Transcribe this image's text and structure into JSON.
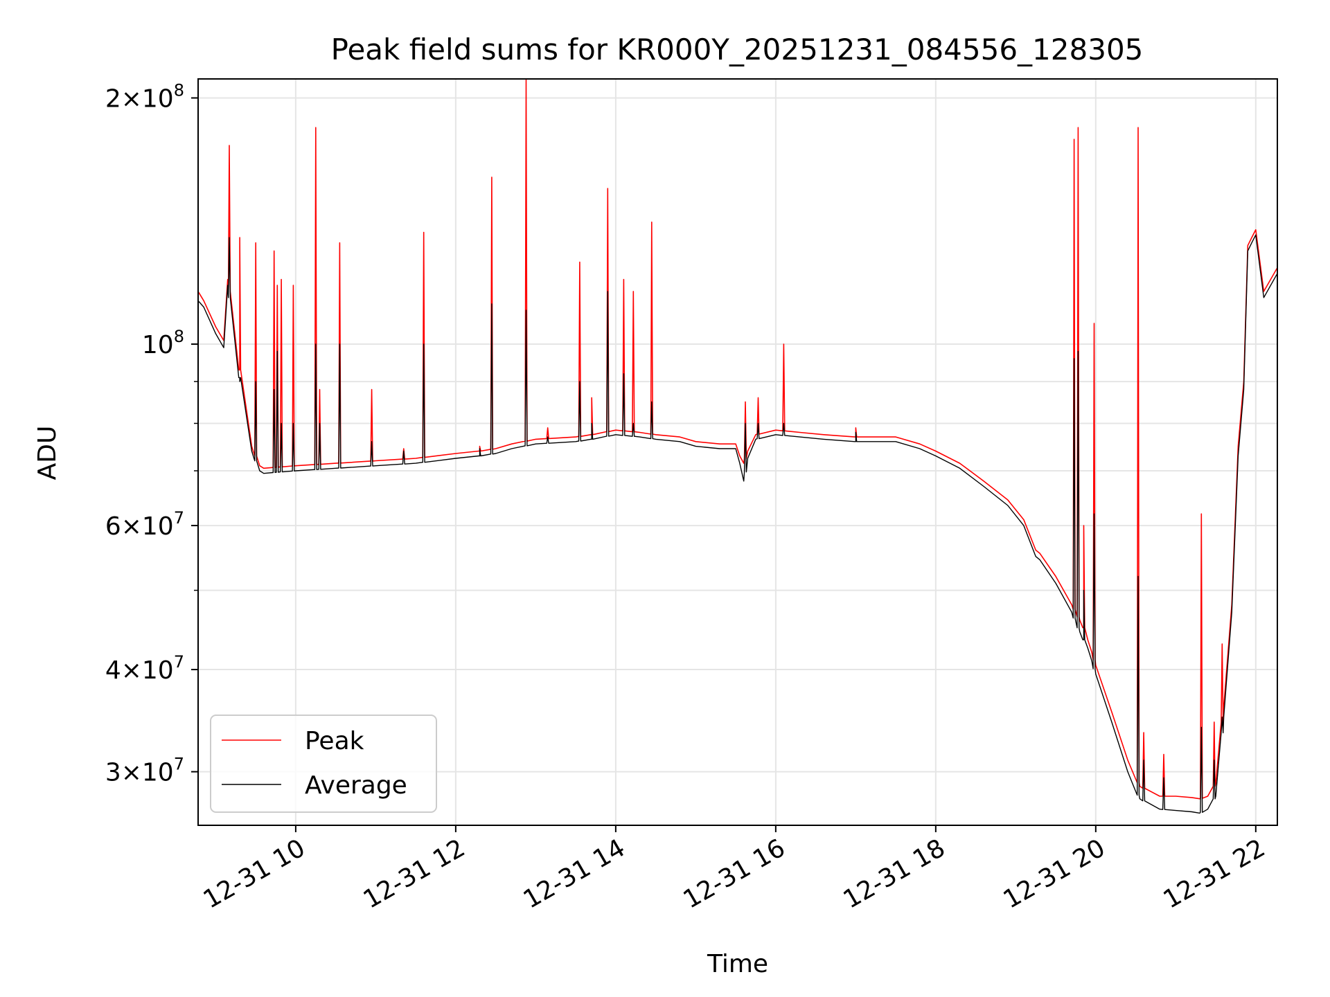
{
  "chart_data": {
    "type": "line",
    "title": "Peak field sums for KR000Y_20251231_084556_128305",
    "xlabel": "Time",
    "ylabel": "ADU",
    "yscale": "log",
    "grid": true,
    "xlim_hours": [
      8.78,
      22.27
    ],
    "ylim": [
      25800000,
      211000000
    ],
    "x_ticks": [
      {
        "hour": 10,
        "label": "12-31 10"
      },
      {
        "hour": 12,
        "label": "12-31 12"
      },
      {
        "hour": 14,
        "label": "12-31 14"
      },
      {
        "hour": 16,
        "label": "12-31 16"
      },
      {
        "hour": 18,
        "label": "12-31 18"
      },
      {
        "hour": 20,
        "label": "12-31 20"
      },
      {
        "hour": 22,
        "label": "12-31 22"
      }
    ],
    "y_major_ticks": [
      {
        "value": 30000000,
        "mantissa": "3",
        "exp": "7"
      },
      {
        "value": 40000000,
        "mantissa": "4",
        "exp": "7"
      },
      {
        "value": 60000000,
        "mantissa": "6",
        "exp": "7"
      },
      {
        "value": 100000000,
        "mantissa": "",
        "exp": "8"
      },
      {
        "value": 200000000,
        "mantissa": "2",
        "exp": "8"
      }
    ],
    "y_minor_ticks": [
      50000000,
      70000000,
      80000000,
      90000000
    ],
    "legend": {
      "position": "lower-left",
      "entries": [
        {
          "label": "Peak",
          "color": "#ff0000"
        },
        {
          "label": "Average",
          "color": "#000000"
        }
      ]
    },
    "baseline": {
      "hours": [
        8.78,
        8.85,
        9.0,
        9.1,
        9.15,
        9.3,
        9.45,
        9.55,
        9.6,
        10.0,
        10.5,
        11.0,
        11.5,
        12.0,
        12.3,
        12.5,
        12.7,
        13.0,
        13.5,
        13.7,
        14.0,
        14.3,
        14.5,
        14.8,
        15.0,
        15.3,
        15.5,
        15.55,
        15.6,
        15.65,
        15.75,
        16.0,
        16.3,
        16.6,
        17.0,
        17.5,
        17.8,
        18.0,
        18.3,
        18.6,
        18.9,
        19.1,
        19.25,
        19.3,
        19.5,
        19.7,
        19.8,
        19.85,
        19.9,
        19.95,
        20.0,
        20.2,
        20.4,
        20.55,
        20.8,
        21.0,
        21.2,
        21.3,
        21.4,
        21.5,
        21.6,
        21.7,
        21.78,
        21.85,
        21.9,
        21.95,
        22.0,
        22.1,
        22.27
      ],
      "peak": [
        116000000,
        113000000,
        105000000,
        101000000,
        120000000,
        93000000,
        75000000,
        71000000,
        70500000,
        71000000,
        71500000,
        72000000,
        72500000,
        73500000,
        74000000,
        74500000,
        75500000,
        76500000,
        77000000,
        77500000,
        78500000,
        78000000,
        77500000,
        77000000,
        76000000,
        75500000,
        75500000,
        73000000,
        71500000,
        74000000,
        77500000,
        78500000,
        78000000,
        77500000,
        77000000,
        77000000,
        75500000,
        74000000,
        71500000,
        68000000,
        64500000,
        61000000,
        56000000,
        55500000,
        52000000,
        48000000,
        46000000,
        45000000,
        43500000,
        42000000,
        40500000,
        35500000,
        31000000,
        28800000,
        28000000,
        28000000,
        27900000,
        27800000,
        28000000,
        29000000,
        36000000,
        48000000,
        75000000,
        90000000,
        132000000,
        135000000,
        138000000,
        116000000,
        124000000
      ],
      "avg": [
        113000000,
        111000000,
        103000000,
        99000000,
        118000000,
        91000000,
        74000000,
        70000000,
        69500000,
        70000000,
        70500000,
        71000000,
        71500000,
        72500000,
        73000000,
        73500000,
        74500000,
        75500000,
        76000000,
        76500000,
        77500000,
        77000000,
        76500000,
        76000000,
        75000000,
        74500000,
        74500000,
        71500000,
        68000000,
        72500000,
        76500000,
        77500000,
        77000000,
        76500000,
        76000000,
        76000000,
        74500000,
        73000000,
        70500000,
        67000000,
        63500000,
        60000000,
        55000000,
        54500000,
        51000000,
        47000000,
        44500000,
        43500000,
        42500000,
        41000000,
        39500000,
        34500000,
        30000000,
        27800000,
        27000000,
        26900000,
        26800000,
        26700000,
        27000000,
        28000000,
        35000000,
        47000000,
        73000000,
        88000000,
        130000000,
        133000000,
        136000000,
        114000000,
        122000000
      ]
    },
    "spikes": {
      "hours": [
        9.17,
        9.3,
        9.5,
        9.73,
        9.77,
        9.82,
        9.97,
        10.25,
        10.3,
        10.55,
        10.95,
        11.35,
        11.6,
        12.3,
        12.45,
        12.88,
        13.15,
        13.55,
        13.7,
        13.9,
        14.1,
        14.22,
        14.45,
        15.62,
        15.78,
        16.1,
        17.0,
        19.73,
        19.78,
        19.85,
        19.98,
        20.53,
        20.6,
        20.85,
        21.32,
        21.48,
        21.58
      ],
      "peak": [
        175000000,
        135000000,
        133000000,
        130000000,
        118000000,
        120000000,
        118000000,
        184000000,
        88000000,
        133000000,
        88000000,
        74500000,
        137000000,
        75000000,
        160000000,
        211000000,
        79000000,
        126000000,
        86000000,
        155000000,
        120000000,
        116000000,
        141000000,
        85000000,
        86000000,
        100000000,
        79000000,
        178000000,
        184000000,
        60000000,
        106000000,
        184000000,
        33500000,
        31500000,
        62000000,
        34500000,
        43000000
      ],
      "avg": [
        135000000,
        90000000,
        90000000,
        88000000,
        98000000,
        80000000,
        80000000,
        100000000,
        80000000,
        100000000,
        76000000,
        74000000,
        100000000,
        74500000,
        112000000,
        110000000,
        77000000,
        90000000,
        80000000,
        116000000,
        92000000,
        80000000,
        85000000,
        80000000,
        80000000,
        80000000,
        78000000,
        96000000,
        98000000,
        50000000,
        62000000,
        52000000,
        31000000,
        29500000,
        34000000,
        31000000,
        35000000
      ]
    }
  }
}
